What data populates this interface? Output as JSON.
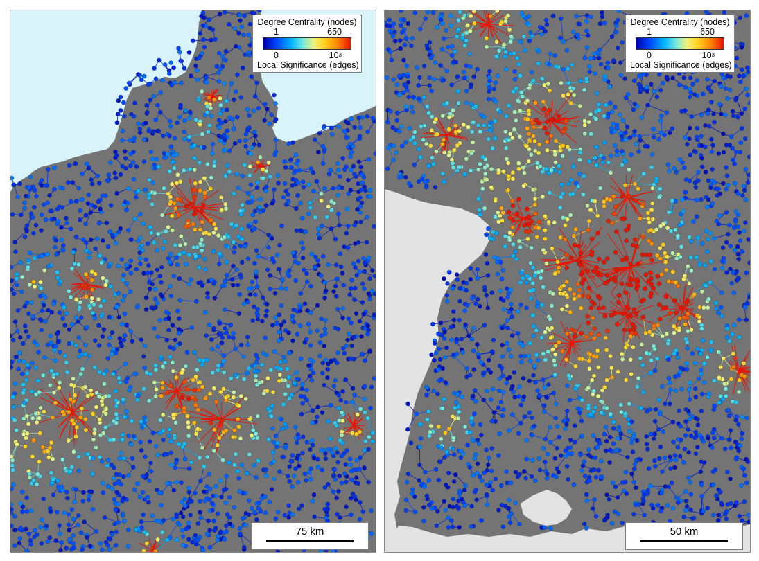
{
  "maps": [
    {
      "legend": {
        "title_nodes": "Degree Centrality (nodes)",
        "node_min": "1",
        "node_max": "650",
        "edge_min": "0",
        "edge_max_base": "10",
        "edge_max_exp": "3",
        "title_edges": "Local Significance (edges)"
      },
      "scale_label": "75 km"
    },
    {
      "legend": {
        "title_nodes": "Degree Centrality (nodes)",
        "node_min": "1",
        "node_max": "650",
        "edge_min": "0",
        "edge_max_base": "10",
        "edge_max_exp": "3",
        "title_edges": "Local Significance (edges)"
      },
      "scale_label": "50 km"
    }
  ],
  "colors": {
    "land": "#747474",
    "water": "#d9f3fb",
    "outside": "#e3e3e3",
    "colormap": [
      "#0000a8",
      "#0044ff",
      "#00b4ff",
      "#6fe8e0",
      "#f2f27a",
      "#ffd21e",
      "#ff8a00",
      "#e81400"
    ]
  }
}
